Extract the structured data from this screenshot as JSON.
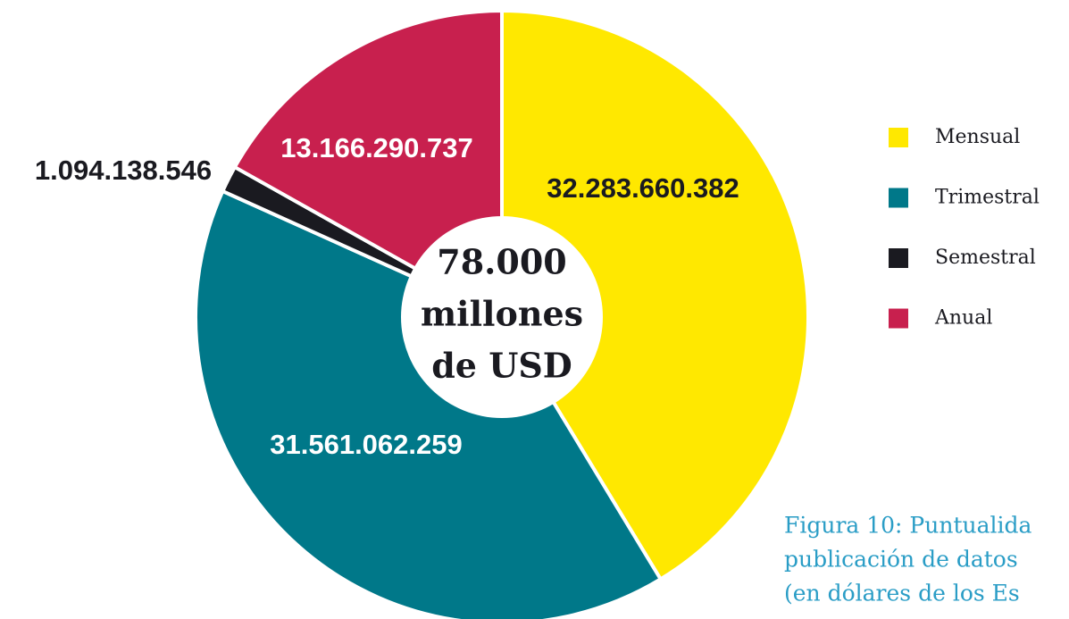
{
  "chart_data": {
    "type": "donut",
    "categories": [
      "Mensual",
      "Trimestral",
      "Semestral",
      "Anual"
    ],
    "values": [
      32283660382,
      31561062259,
      1094138546,
      13166290737
    ],
    "value_labels": [
      "32.283.660.382",
      "31.561.062.259",
      "1.094.138.546",
      "13.166.290.737"
    ],
    "colors": [
      "#ffe800",
      "#007889",
      "#1a1a20",
      "#c8204e"
    ],
    "center_label": [
      "78.000",
      "millones",
      "de USD"
    ],
    "caption": [
      "Figura 10: Puntualida",
      "publicación de datos",
      "(en dólares de los Es"
    ],
    "legend": "right"
  }
}
